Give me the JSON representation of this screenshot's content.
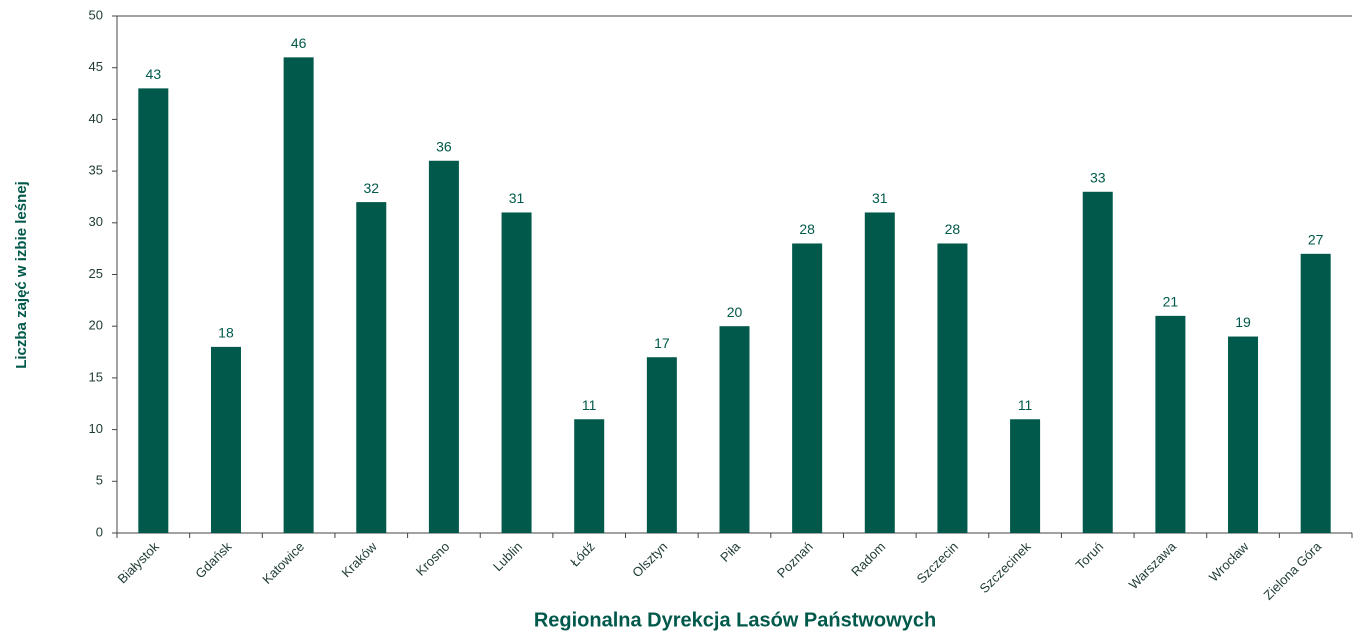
{
  "chart_data": {
    "type": "bar",
    "xlabel": "Regionalna Dyrekcja Lasów Państwowych",
    "ylabel": "Liczba zajęć w izbie leśnej",
    "categories": [
      "Białystok",
      "Gdańsk",
      "Katowice",
      "Kraków",
      "Krosno",
      "Lublin",
      "Łódź",
      "Olsztyn",
      "Piła",
      "Poznań",
      "Radom",
      "Szczecin",
      "Szczecinek",
      "Toruń",
      "Warszawa",
      "Wrocław",
      "Zielona Góra"
    ],
    "values": [
      43,
      18,
      46,
      32,
      36,
      31,
      11,
      17,
      20,
      28,
      31,
      28,
      11,
      33,
      21,
      19,
      27
    ],
    "color": "#00594a",
    "ylim": [
      0,
      50
    ],
    "yticks": [
      0,
      5,
      10,
      15,
      20,
      25,
      30,
      35,
      40,
      45,
      50
    ],
    "grid": false
  }
}
